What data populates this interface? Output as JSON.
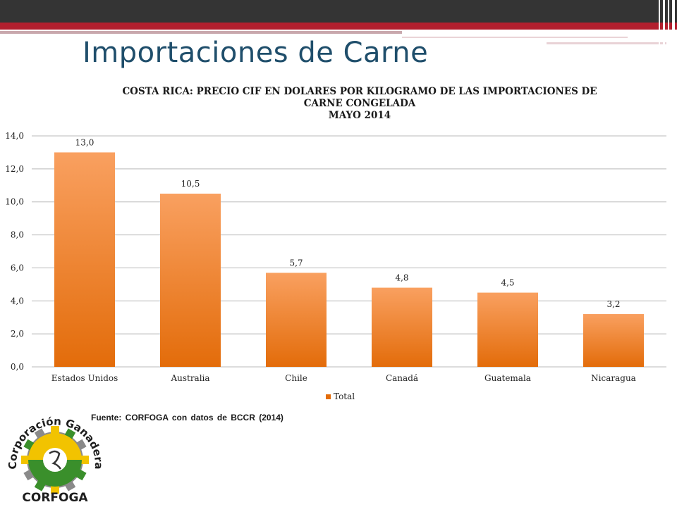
{
  "slide": {
    "title": "Importaciones de Carne",
    "source": "Fuente: CORFOGA con datos de BCCR (2014)"
  },
  "logo": {
    "arc_text": "Corporación Ganadera",
    "bottom_text": "CORFOGA",
    "colors": {
      "green": "#3a8f2b",
      "yellow": "#f2c300",
      "gray": "#8a8a8a"
    }
  },
  "colors": {
    "title": "#1f4e6b",
    "bar_light": "#f9a060",
    "bar_dark": "#e36c0a",
    "grid": "#b8b8b8",
    "top_bar": "#343434",
    "red_band": "#b21f2e"
  },
  "chart_data": {
    "type": "bar",
    "title_lines": [
      "COSTA RICA: PRECIO CIF EN DOLARES POR KILOGRAMO DE LAS IMPORTACIONES DE",
      "CARNE CONGELADA",
      "MAYO 2014"
    ],
    "categories": [
      "Estados Unidos",
      "Australia",
      "Chile",
      "Canadá",
      "Guatemala",
      "Nicaragua"
    ],
    "series": [
      {
        "name": "Total",
        "values": [
          13.0,
          10.5,
          5.7,
          4.8,
          4.5,
          3.2
        ]
      }
    ],
    "value_labels": [
      "13,0",
      "10,5",
      "5,7",
      "4,8",
      "4,5",
      "3,2"
    ],
    "y_ticks": [
      0,
      2,
      4,
      6,
      8,
      10,
      12,
      14
    ],
    "y_tick_labels": [
      "0,0",
      "2,0",
      "4,0",
      "6,0",
      "8,0",
      "10,0",
      "12,0",
      "14,0"
    ],
    "ylim": [
      0,
      14
    ],
    "grid": true,
    "legend_position": "bottom"
  }
}
